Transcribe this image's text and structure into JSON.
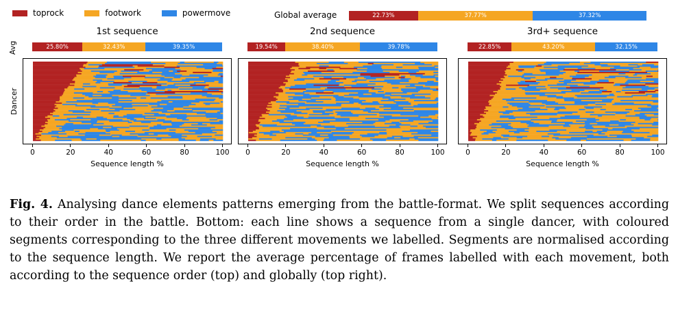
{
  "colors": {
    "toprock": "#B22222",
    "footwork": "#F5A623",
    "powermove": "#2E86E6"
  },
  "legend": [
    {
      "label": "toprock",
      "color": "#B22222"
    },
    {
      "label": "footwork",
      "color": "#F5A623"
    },
    {
      "label": "powermove",
      "color": "#2E86E6"
    }
  ],
  "global": {
    "label": "Global average",
    "values": [
      22.73,
      37.77,
      37.32
    ],
    "labels": [
      "22.73%",
      "37.77%",
      "37.32%"
    ]
  },
  "chart_data": [
    {
      "type": "bar",
      "title": "1st sequence",
      "ylabel": "Avg",
      "categories": [
        "toprock",
        "footwork",
        "powermove"
      ],
      "values": [
        25.8,
        32.43,
        39.35
      ],
      "labels": [
        "25.80%",
        "32.43%",
        "39.35%"
      ],
      "heatmap": {
        "ylabel": "Dancer",
        "xlabel": "Sequence length %",
        "xticks": [
          "0",
          "20",
          "40",
          "60",
          "80",
          "100"
        ]
      }
    },
    {
      "type": "bar",
      "title": "2nd sequence",
      "categories": [
        "toprock",
        "footwork",
        "powermove"
      ],
      "values": [
        19.54,
        38.4,
        39.78
      ],
      "labels": [
        "19.54%",
        "38.40%",
        "39.78%"
      ],
      "heatmap": {
        "xlabel": "Sequence length %",
        "xticks": [
          "0",
          "20",
          "40",
          "60",
          "80",
          "100"
        ]
      }
    },
    {
      "type": "bar",
      "title": "3rd+ sequence",
      "categories": [
        "toprock",
        "footwork",
        "powermove"
      ],
      "values": [
        22.85,
        43.2,
        32.15
      ],
      "labels": [
        "22.85%",
        "43.20%",
        "32.15%"
      ],
      "heatmap": {
        "xlabel": "Sequence length %",
        "xticks": [
          "0",
          "20",
          "40",
          "60",
          "80",
          "100"
        ]
      }
    }
  ],
  "caption": {
    "label": "Fig. 4.",
    "text": "Analysing dance elements patterns emerging from the battle-format. We split sequences according to their order in the battle. Bottom: each line shows a sequence from a single dancer, with coloured segments corresponding to the three different movements we labelled. Segments are normalised according to the sequence length. We report the average percentage of frames labelled with each movement, both according to the sequence order (top) and globally (top right)."
  }
}
